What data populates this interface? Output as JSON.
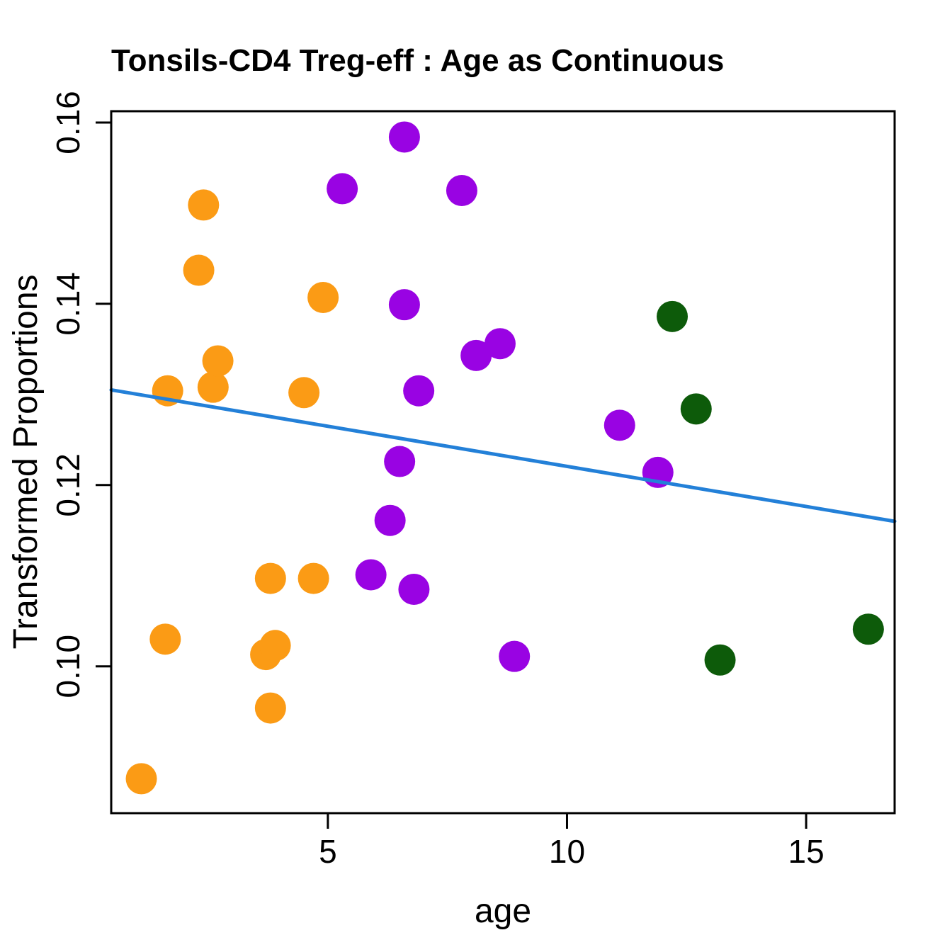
{
  "title": "Tonsils-CD4 Treg-eff : Age as Continuous",
  "chart_data": {
    "type": "scatter",
    "title": "Tonsils-CD4 Treg-eff : Age as Continuous",
    "xlabel": "age",
    "ylabel": "Transformed Proportions",
    "xlim": [
      0.47,
      16.85
    ],
    "ylim": [
      0.0838,
      0.16125
    ],
    "xticks": [
      5,
      10,
      15
    ],
    "xtick_labels": [
      "5",
      "10",
      "15"
    ],
    "yticks": [
      0.1,
      0.12,
      0.14,
      0.16
    ],
    "ytick_labels": [
      "0.10",
      "0.12",
      "0.14",
      "0.16"
    ],
    "grid": false,
    "legend_position": "none",
    "point_radius_px": 22,
    "colors": {
      "orange": "#FB9B15",
      "purple": "#9903E3",
      "darkgreen": "#0D5B0A",
      "trend_blue": "#2380D8",
      "axis_black": "#000000"
    },
    "series": [
      {
        "name": "orange-group",
        "color": "#FB9B15",
        "points": [
          [
            1.1,
            0.0876
          ],
          [
            1.6,
            0.103
          ],
          [
            1.65,
            0.1304
          ],
          [
            2.3,
            0.1437
          ],
          [
            2.4,
            0.1509
          ],
          [
            2.6,
            0.1308
          ],
          [
            2.7,
            0.1337
          ],
          [
            3.7,
            0.1013
          ],
          [
            3.8,
            0.0954
          ],
          [
            3.8,
            0.1097
          ],
          [
            3.9,
            0.1023
          ],
          [
            4.5,
            0.1302
          ],
          [
            4.7,
            0.1097
          ],
          [
            4.9,
            0.1407
          ]
        ]
      },
      {
        "name": "purple-group",
        "color": "#9903E3",
        "points": [
          [
            5.3,
            0.1527
          ],
          [
            5.9,
            0.1101
          ],
          [
            6.3,
            0.1161
          ],
          [
            6.5,
            0.1226
          ],
          [
            6.6,
            0.1399
          ],
          [
            6.6,
            0.1584
          ],
          [
            6.8,
            0.1085
          ],
          [
            6.9,
            0.1304
          ],
          [
            7.8,
            0.1525
          ],
          [
            8.1,
            0.1343
          ],
          [
            8.6,
            0.1356
          ],
          [
            8.9,
            0.1011
          ],
          [
            11.1,
            0.1266
          ],
          [
            11.9,
            0.1214
          ]
        ]
      },
      {
        "name": "darkgreen-group",
        "color": "#0D5B0A",
        "points": [
          [
            12.2,
            0.1386
          ],
          [
            12.7,
            0.1284
          ],
          [
            13.2,
            0.1007
          ],
          [
            16.3,
            0.1041
          ]
        ]
      }
    ],
    "trend_line": {
      "color": "#2380D8",
      "x1": 0.47,
      "y1": 0.1305,
      "x2": 16.85,
      "y2": 0.116
    }
  }
}
